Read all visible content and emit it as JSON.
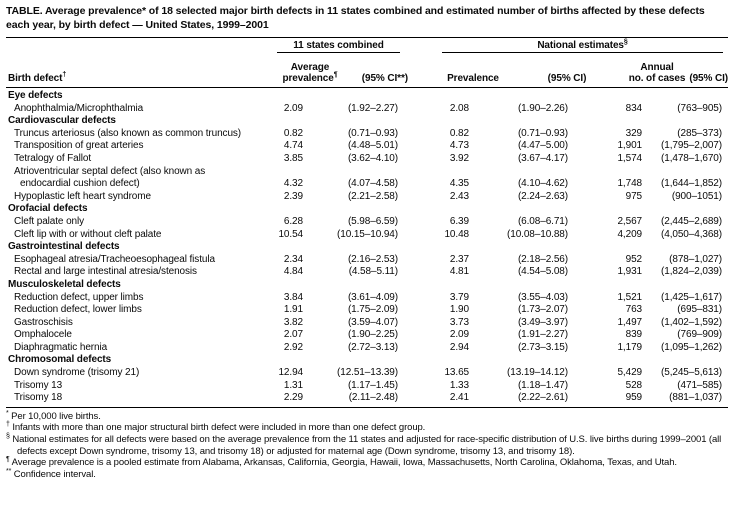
{
  "title": "TABLE. Average prevalence* of 18 selected major birth defects in 11 states combined and estimated number of births affected by these defects each year, by birth defect — United States, 1999–2001",
  "header": {
    "group_states": "11 states combined",
    "group_national": {
      "text": "National estimates",
      "sup": "§"
    },
    "birth_defect": {
      "text": "Birth defect",
      "sup": "†"
    },
    "avg_prevalence": {
      "line1": "Average",
      "line2": "prevalence",
      "sup": "¶"
    },
    "ci_states": "(95% CI**)",
    "prevalence": "Prevalence",
    "ci_national": "(95% CI)",
    "annual_cases": {
      "line1": "Annual",
      "line2": "no. of cases"
    },
    "ci_cases": "(95% CI)"
  },
  "rows": [
    {
      "type": "category",
      "label": "Eye defects"
    },
    {
      "type": "item",
      "label": "Anophthalmia/Microphthalmia",
      "avg": "2.09",
      "ci1": "(1.92–2.27)",
      "prev": "2.08",
      "ci2": "(1.90–2.26)",
      "cases": "834",
      "ci3": "(763–905)"
    },
    {
      "type": "category",
      "label": "Cardiovascular defects"
    },
    {
      "type": "item",
      "label": "Truncus arteriosus (also known as common truncus)",
      "avg": "0.82",
      "ci1": "(0.71–0.93)",
      "prev": "0.82",
      "ci2": "(0.71–0.93)",
      "cases": "329",
      "ci3": "(285–373)"
    },
    {
      "type": "item",
      "label": "Transposition of great arteries",
      "avg": "4.74",
      "ci1": "(4.48–5.01)",
      "prev": "4.73",
      "ci2": "(4.47–5.00)",
      "cases": "1,901",
      "ci3": "(1,795–2,007)"
    },
    {
      "type": "item",
      "label": "Tetralogy of Fallot",
      "avg": "3.85",
      "ci1": "(3.62–4.10)",
      "prev": "3.92",
      "ci2": "(3.67–4.17)",
      "cases": "1,574",
      "ci3": "(1,478–1,670)"
    },
    {
      "type": "item",
      "label": "Atrioventricular septal defect (also known as",
      "label2": "endocardial cushion defect)",
      "avg": "4.32",
      "ci1": "(4.07–4.58)",
      "prev": "4.35",
      "ci2": "(4.10–4.62)",
      "cases": "1,748",
      "ci3": "(1,644–1,852)"
    },
    {
      "type": "item",
      "label": "Hypoplastic left heart syndrome",
      "avg": "2.39",
      "ci1": "(2.21–2.58)",
      "prev": "2.43",
      "ci2": "(2.24–2.63)",
      "cases": "975",
      "ci3": "(900–1051)"
    },
    {
      "type": "category",
      "label": "Orofacial defects"
    },
    {
      "type": "item",
      "label": "Cleft palate only",
      "avg": "6.28",
      "ci1": "(5.98–6.59)",
      "prev": "6.39",
      "ci2": "(6.08–6.71)",
      "cases": "2,567",
      "ci3": "(2,445–2,689)"
    },
    {
      "type": "item",
      "label": "Cleft lip with or without cleft palate",
      "avg": "10.54",
      "ci1": "(10.15–10.94)",
      "prev": "10.48",
      "ci2": "(10.08–10.88)",
      "cases": "4,209",
      "ci3": "(4,050–4,368)"
    },
    {
      "type": "category",
      "label": "Gastrointestinal defects"
    },
    {
      "type": "item",
      "label": "Esophageal atresia/Tracheoesophageal fistula",
      "avg": "2.34",
      "ci1": "(2.16–2.53)",
      "prev": "2.37",
      "ci2": "(2.18–2.56)",
      "cases": "952",
      "ci3": "(878–1,027)"
    },
    {
      "type": "item",
      "label": "Rectal and large intestinal atresia/stenosis",
      "avg": "4.84",
      "ci1": "(4.58–5.11)",
      "prev": "4.81",
      "ci2": "(4.54–5.08)",
      "cases": "1,931",
      "ci3": "(1,824–2,039)"
    },
    {
      "type": "category",
      "label": "Musculoskeletal defects"
    },
    {
      "type": "item",
      "label": "Reduction defect, upper limbs",
      "avg": "3.84",
      "ci1": "(3.61–4.09)",
      "prev": "3.79",
      "ci2": "(3.55–4.03)",
      "cases": "1,521",
      "ci3": "(1,425–1,617)"
    },
    {
      "type": "item",
      "label": "Reduction defect, lower limbs",
      "avg": "1.91",
      "ci1": "(1.75–2.09)",
      "prev": "1.90",
      "ci2": "(1.73–2.07)",
      "cases": "763",
      "ci3": "(695–831)"
    },
    {
      "type": "item",
      "label": "Gastroschisis",
      "avg": "3.82",
      "ci1": "(3.59–4.07)",
      "prev": "3.73",
      "ci2": "(3.49–3.97)",
      "cases": "1,497",
      "ci3": "(1,402–1,592)"
    },
    {
      "type": "item",
      "label": "Omphalocele",
      "avg": "2.07",
      "ci1": "(1.90–2.25)",
      "prev": "2.09",
      "ci2": "(1.91–2.27)",
      "cases": "839",
      "ci3": "(769–909)"
    },
    {
      "type": "item",
      "label": "Diaphragmatic hernia",
      "avg": "2.92",
      "ci1": "(2.72–3.13)",
      "prev": "2.94",
      "ci2": "(2.73–3.15)",
      "cases": "1,179",
      "ci3": "(1,095–1,262)"
    },
    {
      "type": "category",
      "label": "Chromosomal defects"
    },
    {
      "type": "item",
      "label": "Down syndrome (trisomy 21)",
      "avg": "12.94",
      "ci1": "(12.51–13.39)",
      "prev": "13.65",
      "ci2": "(13.19–14.12)",
      "cases": "5,429",
      "ci3": "(5,245–5,613)"
    },
    {
      "type": "item",
      "label": "Trisomy 13",
      "avg": "1.31",
      "ci1": "(1.17–1.45)",
      "prev": "1.33",
      "ci2": "(1.18–1.47)",
      "cases": "528",
      "ci3": "(471–585)"
    },
    {
      "type": "item",
      "label": "Trisomy 18",
      "avg": "2.29",
      "ci1": "(2.11–2.48)",
      "prev": "2.41",
      "ci2": "(2.22–2.61)",
      "cases": "959",
      "ci3": "(881–1,037)"
    }
  ],
  "footnotes": [
    {
      "marker": "*",
      "text": "Per 10,000 live births."
    },
    {
      "marker": "†",
      "text": "Infants with more than one major structural birth defect were included in more than one defect group."
    },
    {
      "marker": "§",
      "text": "National estimates for all defects were based on the average prevalence from the 11 states and adjusted for race-specific distribution of U.S. live births during 1999–2001 (all defects except Down syndrome, trisomy 13, and trisomy 18) or adjusted for maternal age (Down syndrome, trisomy 13, and trisomy 18)."
    },
    {
      "marker": "¶",
      "text": "Average prevalence is a pooled estimate from Alabama, Arkansas, California, Georgia, Hawaii, Iowa, Massachusetts, North Carolina, Oklahoma, Texas, and Utah."
    },
    {
      "marker": "**",
      "text": "Confidence interval."
    }
  ]
}
